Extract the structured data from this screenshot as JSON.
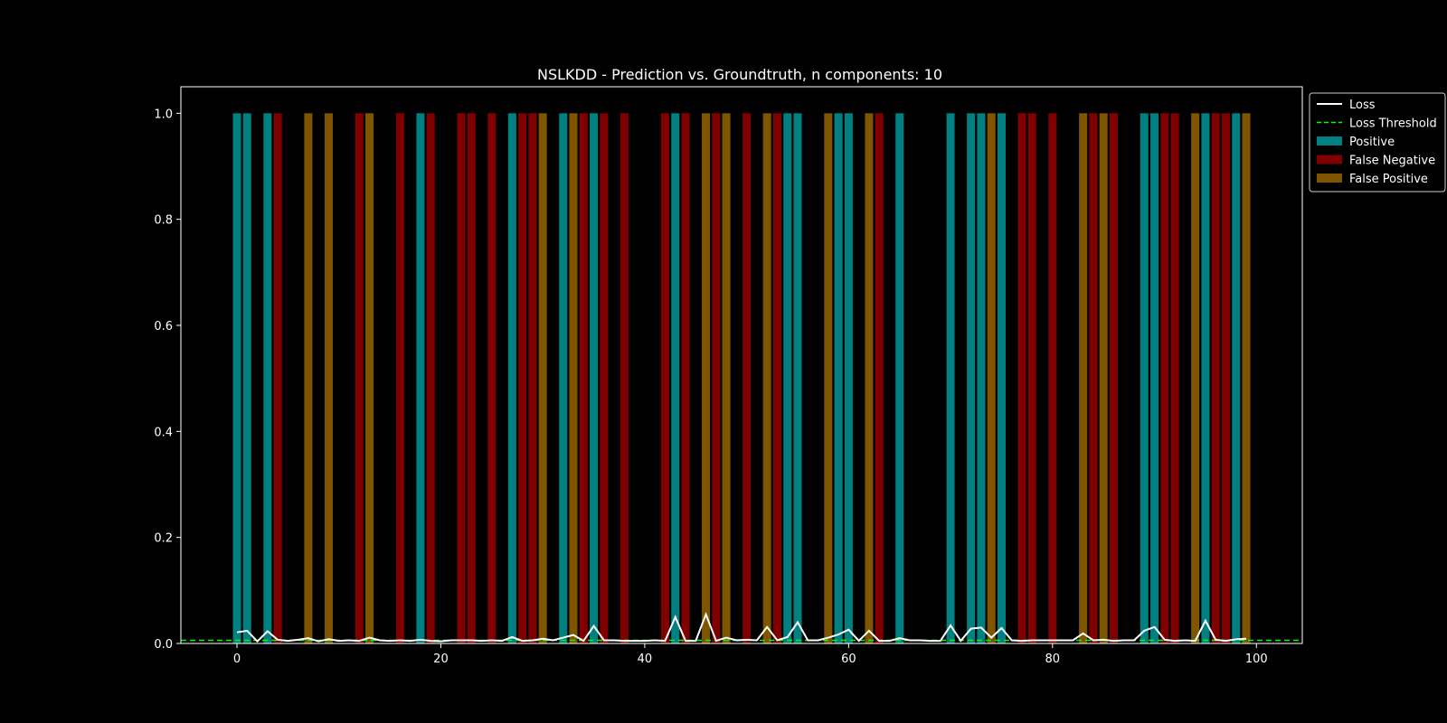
{
  "chart_data": {
    "type": "bar",
    "title": "NSLKDD - Prediction vs. Groundtruth, n components: 10",
    "xlabel": "",
    "ylabel": "",
    "xlim": [
      -5.5,
      104.5
    ],
    "ylim": [
      0,
      1.05
    ],
    "xticks": [
      0,
      20,
      40,
      60,
      80,
      100
    ],
    "yticks": [
      0.0,
      0.2,
      0.4,
      0.6,
      0.8,
      1.0
    ],
    "xtick_labels": [
      "0",
      "20",
      "40",
      "60",
      "80",
      "100"
    ],
    "ytick_labels": [
      "0.0",
      "0.2",
      "0.4",
      "0.6",
      "0.8",
      "1.0"
    ],
    "grid": false,
    "legend_position": "outside-top-right",
    "loss_threshold": 0.006,
    "series": [
      {
        "name": "Loss",
        "kind": "line",
        "color": "#ffffff",
        "y": [
          0.021,
          0.024,
          0.004,
          0.023,
          0.007,
          0.005,
          0.007,
          0.01,
          0.004,
          0.008,
          0.005,
          0.006,
          0.005,
          0.011,
          0.006,
          0.005,
          0.006,
          0.005,
          0.007,
          0.005,
          0.004,
          0.006,
          0.006,
          0.006,
          0.005,
          0.006,
          0.005,
          0.012,
          0.005,
          0.006,
          0.009,
          0.006,
          0.011,
          0.016,
          0.005,
          0.033,
          0.006,
          0.006,
          0.005,
          0.005,
          0.005,
          0.006,
          0.005,
          0.05,
          0.005,
          0.005,
          0.055,
          0.005,
          0.011,
          0.006,
          0.007,
          0.006,
          0.031,
          0.006,
          0.012,
          0.04,
          0.006,
          0.006,
          0.011,
          0.017,
          0.026,
          0.005,
          0.024,
          0.005,
          0.005,
          0.01,
          0.006,
          0.006,
          0.005,
          0.005,
          0.034,
          0.005,
          0.028,
          0.03,
          0.011,
          0.029,
          0.006,
          0.005,
          0.006,
          0.006,
          0.006,
          0.006,
          0.006,
          0.019,
          0.006,
          0.007,
          0.005,
          0.006,
          0.006,
          0.024,
          0.031,
          0.007,
          0.005,
          0.006,
          0.005,
          0.043,
          0.007,
          0.005,
          0.008,
          0.009
        ]
      },
      {
        "name": "Loss Threshold",
        "kind": "dashed-line",
        "color": "#00ff00"
      },
      {
        "name": "Positive",
        "kind": "bar",
        "color": "#008080",
        "x": [
          0,
          1,
          3,
          18,
          27,
          32,
          35,
          43,
          54,
          55,
          59,
          60,
          65,
          70,
          72,
          73,
          75,
          89,
          90,
          95,
          98
        ],
        "height": 1.0
      },
      {
        "name": "False Negative",
        "kind": "bar",
        "color": "#800000",
        "x": [
          4,
          12,
          16,
          19,
          22,
          23,
          25,
          28,
          29,
          34,
          36,
          38,
          42,
          44,
          47,
          50,
          53,
          63,
          77,
          78,
          80,
          84,
          86,
          91,
          92,
          96,
          97
        ],
        "height": 1.0
      },
      {
        "name": "False Positive",
        "kind": "bar",
        "color": "#805500",
        "x": [
          7,
          9,
          13,
          30,
          33,
          46,
          48,
          52,
          58,
          62,
          74,
          83,
          85,
          94,
          99
        ],
        "height": 1.0
      }
    ],
    "legend": [
      "Loss",
      "Loss Threshold",
      "Positive",
      "False Negative",
      "False Positive"
    ]
  }
}
